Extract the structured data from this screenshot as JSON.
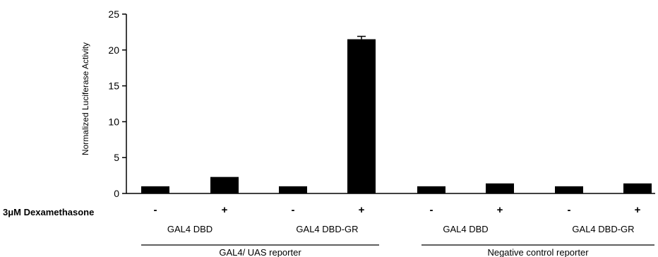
{
  "chart_data": {
    "type": "bar",
    "ylabel": "Normalized Luciferase Activity",
    "ylim": [
      0,
      25
    ],
    "yticks": [
      0,
      5,
      10,
      15,
      20,
      25
    ],
    "grid": false,
    "legend": "none",
    "bar_color": "#000000",
    "treatment_label": "3μM Dexamethasone",
    "bars": [
      {
        "dex": "-",
        "value": 1.0
      },
      {
        "dex": "+",
        "value": 2.3
      },
      {
        "dex": "-",
        "value": 1.0
      },
      {
        "dex": "+",
        "value": 21.5,
        "error": 0.4
      },
      {
        "dex": "-",
        "value": 1.0
      },
      {
        "dex": "+",
        "value": 1.4
      },
      {
        "dex": "-",
        "value": 1.0
      },
      {
        "dex": "+",
        "value": 1.4
      }
    ],
    "constructs": [
      "GAL4 DBD",
      "GAL4 DBD-GR",
      "GAL4 DBD",
      "GAL4 DBD-GR"
    ],
    "reporters": [
      "GAL4/ UAS reporter",
      "Negative control reporter"
    ]
  }
}
